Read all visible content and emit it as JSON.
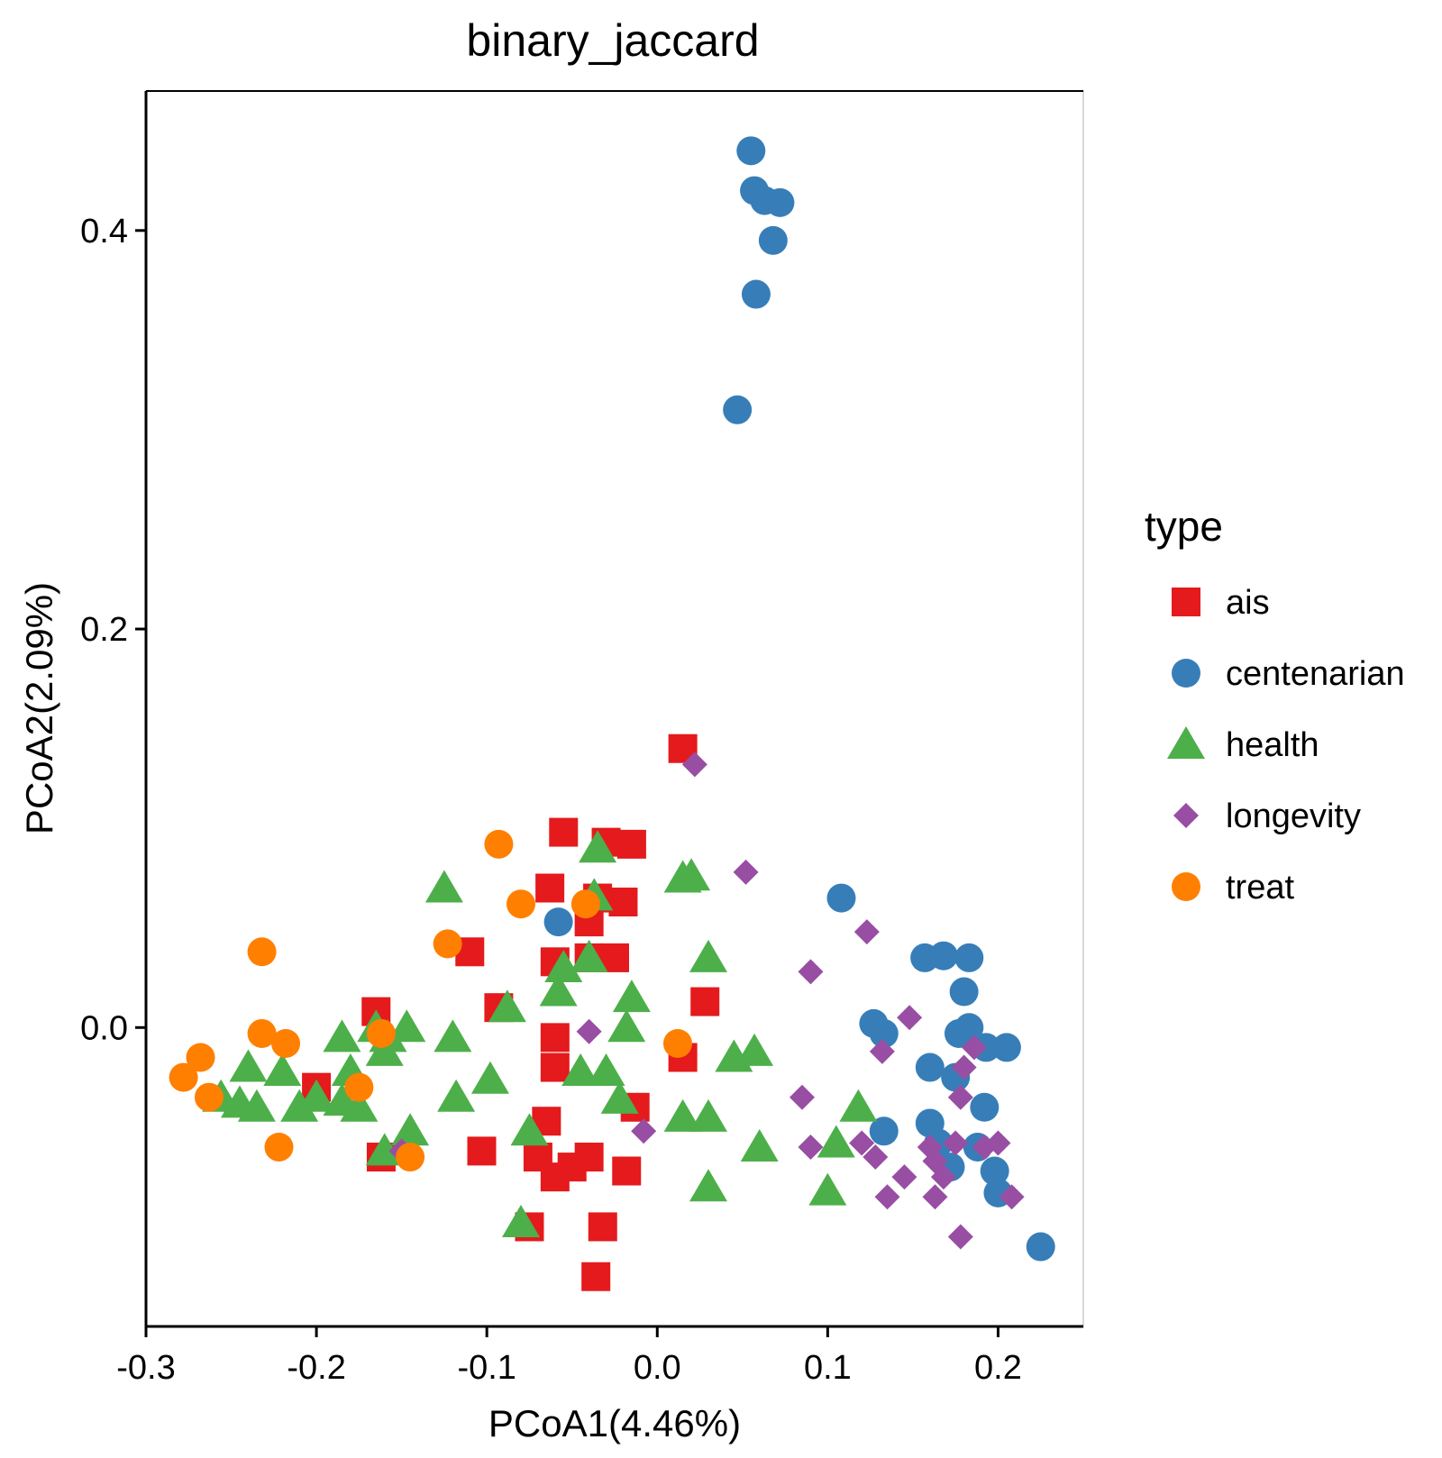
{
  "chart_data": {
    "type": "scatter",
    "title": "binary_jaccard",
    "xlabel": "PCoA1(4.46%)",
    "ylabel": "PCoA2(2.09%)",
    "xlim": [
      -0.3,
      0.25
    ],
    "ylim": [
      -0.15,
      0.47
    ],
    "x_ticks": [
      -0.3,
      -0.2,
      -0.1,
      0.0,
      0.1,
      0.2
    ],
    "x_tick_labels": [
      "-0.3",
      "-0.2",
      "-0.1",
      "0.0",
      "0.1",
      "0.2"
    ],
    "y_ticks": [
      0.0,
      0.2,
      0.4
    ],
    "y_tick_labels": [
      "0.0",
      "0.2",
      "0.4"
    ],
    "grid": false,
    "legend": {
      "title": "type",
      "placement": "right"
    },
    "series": [
      {
        "name": "ais",
        "shape": "square",
        "color": "#e41a1c",
        "points": [
          [
            0.015,
            0.14
          ],
          [
            -0.055,
            0.098
          ],
          [
            -0.03,
            0.093
          ],
          [
            -0.015,
            0.092
          ],
          [
            -0.063,
            0.07
          ],
          [
            -0.035,
            0.065
          ],
          [
            -0.02,
            0.063
          ],
          [
            -0.04,
            0.053
          ],
          [
            -0.11,
            0.038
          ],
          [
            -0.06,
            0.033
          ],
          [
            -0.04,
            0.035
          ],
          [
            -0.025,
            0.035
          ],
          [
            -0.165,
            0.008
          ],
          [
            -0.093,
            0.01
          ],
          [
            0.028,
            0.013
          ],
          [
            -0.06,
            -0.005
          ],
          [
            0.015,
            -0.015
          ],
          [
            -0.06,
            -0.02
          ],
          [
            -0.2,
            -0.03
          ],
          [
            -0.013,
            -0.04
          ],
          [
            -0.065,
            -0.047
          ],
          [
            -0.103,
            -0.062
          ],
          [
            -0.07,
            -0.065
          ],
          [
            -0.04,
            -0.065
          ],
          [
            -0.05,
            -0.07
          ],
          [
            -0.018,
            -0.072
          ],
          [
            -0.06,
            -0.075
          ],
          [
            -0.162,
            -0.065
          ],
          [
            -0.075,
            -0.1
          ],
          [
            -0.032,
            -0.1
          ],
          [
            -0.036,
            -0.125
          ]
        ]
      },
      {
        "name": "centenarian",
        "shape": "circle",
        "color": "#377eb8",
        "points": [
          [
            0.055,
            0.44
          ],
          [
            0.057,
            0.42
          ],
          [
            0.063,
            0.415
          ],
          [
            0.072,
            0.414
          ],
          [
            0.068,
            0.395
          ],
          [
            0.058,
            0.368
          ],
          [
            0.047,
            0.31
          ],
          [
            -0.058,
            0.053
          ],
          [
            0.108,
            0.065
          ],
          [
            0.157,
            0.035
          ],
          [
            0.168,
            0.036
          ],
          [
            0.183,
            0.035
          ],
          [
            0.18,
            0.018
          ],
          [
            0.127,
            0.002
          ],
          [
            0.133,
            -0.003
          ],
          [
            0.177,
            -0.003
          ],
          [
            0.183,
            0.0
          ],
          [
            0.193,
            -0.01
          ],
          [
            0.205,
            -0.01
          ],
          [
            0.16,
            -0.02
          ],
          [
            0.175,
            -0.025
          ],
          [
            0.192,
            -0.04
          ],
          [
            0.133,
            -0.052
          ],
          [
            0.16,
            -0.048
          ],
          [
            0.165,
            -0.058
          ],
          [
            0.172,
            -0.07
          ],
          [
            0.188,
            -0.06
          ],
          [
            0.198,
            -0.072
          ],
          [
            0.2,
            -0.083
          ],
          [
            0.225,
            -0.11
          ]
        ]
      },
      {
        "name": "health",
        "shape": "triangle",
        "color": "#4daf4a",
        "points": [
          [
            -0.035,
            0.09
          ],
          [
            0.015,
            0.075
          ],
          [
            0.02,
            0.076
          ],
          [
            -0.125,
            0.07
          ],
          [
            -0.037,
            0.066
          ],
          [
            -0.055,
            0.03
          ],
          [
            -0.04,
            0.035
          ],
          [
            0.03,
            0.035
          ],
          [
            -0.058,
            0.018
          ],
          [
            -0.015,
            0.015
          ],
          [
            -0.088,
            0.01
          ],
          [
            -0.018,
            0.0
          ],
          [
            -0.185,
            -0.005
          ],
          [
            -0.165,
            0.0
          ],
          [
            -0.158,
            -0.005
          ],
          [
            -0.16,
            -0.012
          ],
          [
            -0.12,
            -0.005
          ],
          [
            -0.147,
            0.0
          ],
          [
            -0.24,
            -0.02
          ],
          [
            -0.22,
            -0.022
          ],
          [
            -0.18,
            -0.022
          ],
          [
            -0.045,
            -0.022
          ],
          [
            -0.03,
            -0.022
          ],
          [
            -0.098,
            -0.026
          ],
          [
            0.045,
            -0.015
          ],
          [
            0.057,
            -0.012
          ],
          [
            -0.256,
            -0.035
          ],
          [
            -0.245,
            -0.038
          ],
          [
            -0.235,
            -0.04
          ],
          [
            -0.21,
            -0.04
          ],
          [
            -0.2,
            -0.035
          ],
          [
            -0.175,
            -0.04
          ],
          [
            -0.185,
            -0.037
          ],
          [
            -0.118,
            -0.035
          ],
          [
            -0.022,
            -0.036
          ],
          [
            -0.145,
            -0.052
          ],
          [
            -0.075,
            -0.052
          ],
          [
            0.015,
            -0.045
          ],
          [
            0.03,
            -0.045
          ],
          [
            0.118,
            -0.04
          ],
          [
            0.06,
            -0.06
          ],
          [
            0.105,
            -0.058
          ],
          [
            0.03,
            -0.08
          ],
          [
            0.1,
            -0.082
          ],
          [
            -0.16,
            -0.062
          ],
          [
            -0.08,
            -0.098
          ]
        ]
      },
      {
        "name": "longevity",
        "shape": "diamond",
        "color": "#984ea3",
        "points": [
          [
            0.022,
            0.132
          ],
          [
            0.052,
            0.078
          ],
          [
            0.123,
            0.048
          ],
          [
            0.09,
            0.028
          ],
          [
            0.148,
            0.005
          ],
          [
            -0.04,
            -0.002
          ],
          [
            0.132,
            -0.012
          ],
          [
            0.18,
            -0.02
          ],
          [
            0.186,
            -0.01
          ],
          [
            0.178,
            -0.035
          ],
          [
            0.085,
            -0.035
          ],
          [
            0.09,
            -0.06
          ],
          [
            0.12,
            -0.058
          ],
          [
            0.128,
            -0.065
          ],
          [
            0.145,
            -0.075
          ],
          [
            0.16,
            -0.06
          ],
          [
            0.163,
            -0.067
          ],
          [
            0.175,
            -0.058
          ],
          [
            0.192,
            -0.06
          ],
          [
            0.2,
            -0.058
          ],
          [
            0.168,
            -0.075
          ],
          [
            0.163,
            -0.085
          ],
          [
            0.135,
            -0.085
          ],
          [
            0.208,
            -0.085
          ],
          [
            0.178,
            -0.105
          ],
          [
            -0.008,
            -0.052
          ],
          [
            -0.15,
            -0.062
          ]
        ]
      },
      {
        "name": "treat",
        "shape": "circle",
        "color": "#ff7f00",
        "points": [
          [
            -0.093,
            0.092
          ],
          [
            -0.08,
            0.062
          ],
          [
            -0.042,
            0.062
          ],
          [
            -0.123,
            0.042
          ],
          [
            -0.232,
            0.038
          ],
          [
            -0.232,
            -0.003
          ],
          [
            -0.218,
            -0.008
          ],
          [
            -0.162,
            -0.003
          ],
          [
            0.012,
            -0.008
          ],
          [
            -0.268,
            -0.015
          ],
          [
            -0.278,
            -0.025
          ],
          [
            -0.263,
            -0.035
          ],
          [
            -0.175,
            -0.03
          ],
          [
            -0.222,
            -0.06
          ],
          [
            -0.145,
            -0.065
          ]
        ]
      }
    ]
  }
}
